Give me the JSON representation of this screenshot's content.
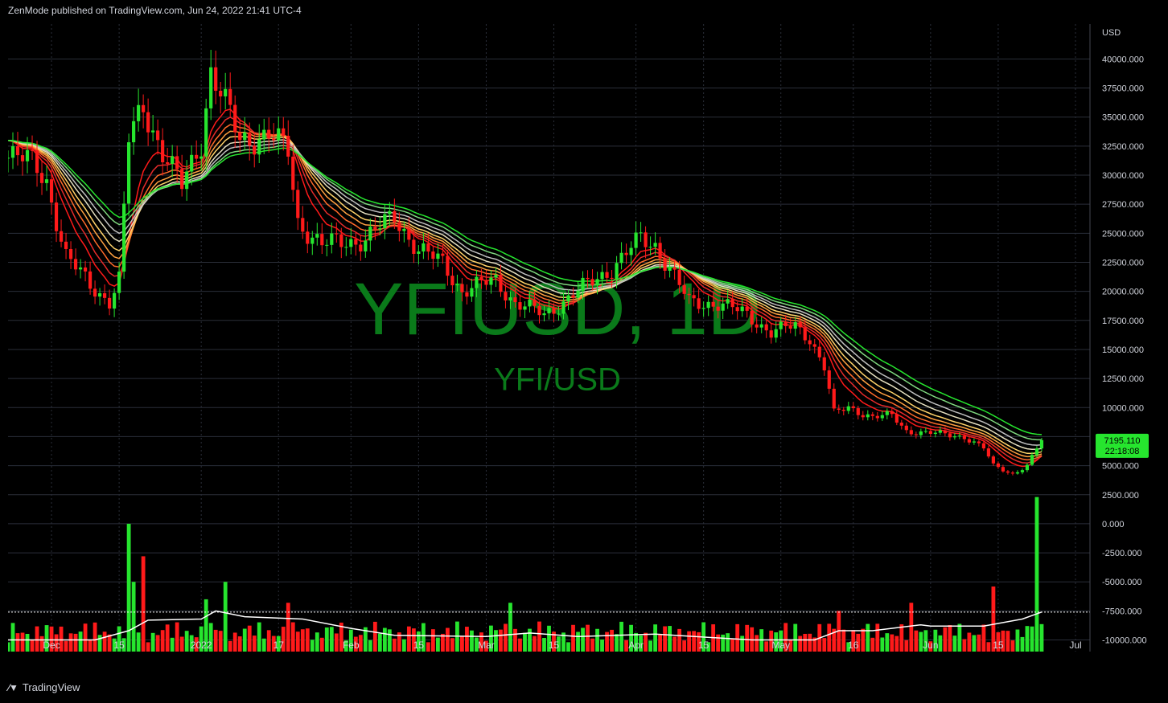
{
  "header": {
    "published_text": "ZenMode published on TradingView.com, Jun 24, 2022 21:41 UTC-4"
  },
  "footer": {
    "brand_label": "TradingView",
    "logo_icon": "tradingview-logo-icon"
  },
  "watermark": {
    "symbol_timeframe": "YFIUSD, 1D",
    "pair": "YFI/USD"
  },
  "colors": {
    "background": "#000000",
    "grid": "#2a2e39",
    "up": "#26e52e",
    "down": "#ff1a1a",
    "axis_text": "#d1d4dc",
    "watermark": "#0a7a1a",
    "volume_ma": "#ffffff",
    "price_tag_bg": "#26e52e"
  },
  "price_tag": {
    "price": "7195.110",
    "countdown": "22:18:08"
  },
  "chart_data": {
    "type": "candlestick",
    "symbol": "YFIUSD",
    "timeframe": "1D",
    "y_axis_label": "USD",
    "ylim": [
      -11000,
      43000
    ],
    "y_ticks": [
      40000,
      37500,
      35000,
      32500,
      30000,
      27500,
      25000,
      22500,
      20000,
      17500,
      15000,
      12500,
      10000,
      7500,
      5000,
      2500,
      0,
      -2500,
      -5000,
      -7500,
      -10000
    ],
    "y_tick_labels": [
      "40000.000",
      "37500.000",
      "35000.000",
      "32500.000",
      "30000.000",
      "27500.000",
      "25000.000",
      "22500.000",
      "20000.000",
      "17500.000",
      "15000.000",
      "12500.000",
      "10000.000",
      "7500.000",
      "5000.000",
      "2500.000",
      "0.000",
      "-2500.000",
      "-5000.000",
      "-7500.000",
      "-10000.000"
    ],
    "x_range": [
      "2021-11-22",
      "2022-07-04"
    ],
    "x_ticks": [
      {
        "date": "2021-12-01",
        "label": "Dec"
      },
      {
        "date": "2021-12-15",
        "label": "15"
      },
      {
        "date": "2022-01-01",
        "label": "2022"
      },
      {
        "date": "2022-01-17",
        "label": "17"
      },
      {
        "date": "2022-02-01",
        "label": "Feb"
      },
      {
        "date": "2022-02-15",
        "label": "15"
      },
      {
        "date": "2022-03-01",
        "label": "Mar"
      },
      {
        "date": "2022-03-15",
        "label": "15"
      },
      {
        "date": "2022-04-01",
        "label": "Apr"
      },
      {
        "date": "2022-04-15",
        "label": "15"
      },
      {
        "date": "2022-05-01",
        "label": "May"
      },
      {
        "date": "2022-05-16",
        "label": "16"
      },
      {
        "date": "2022-06-01",
        "label": "Jun"
      },
      {
        "date": "2022-06-15",
        "label": "15"
      },
      {
        "date": "2022-07-01",
        "label": "Jul"
      }
    ],
    "last_price": 7195.11,
    "price_path": [
      {
        "date": "2021-11-22",
        "close": 32000
      },
      {
        "date": "2021-11-27",
        "close": 31000
      },
      {
        "date": "2021-11-30",
        "close": 29500
      },
      {
        "date": "2021-12-04",
        "close": 23000
      },
      {
        "date": "2021-12-09",
        "close": 20500
      },
      {
        "date": "2021-12-13",
        "close": 19200
      },
      {
        "date": "2021-12-15",
        "close": 21000
      },
      {
        "date": "2021-12-17",
        "close": 33000
      },
      {
        "date": "2021-12-20",
        "close": 36000
      },
      {
        "date": "2021-12-24",
        "close": 32000
      },
      {
        "date": "2021-12-28",
        "close": 29000
      },
      {
        "date": "2022-01-01",
        "close": 33000
      },
      {
        "date": "2022-01-03",
        "close": 39000
      },
      {
        "date": "2022-01-06",
        "close": 36000
      },
      {
        "date": "2022-01-09",
        "close": 33000
      },
      {
        "date": "2022-01-15",
        "close": 33500
      },
      {
        "date": "2022-01-19",
        "close": 32000
      },
      {
        "date": "2022-01-21",
        "close": 26000
      },
      {
        "date": "2022-01-26",
        "close": 24000
      },
      {
        "date": "2022-02-04",
        "close": 24500
      },
      {
        "date": "2022-02-10",
        "close": 26500
      },
      {
        "date": "2022-02-15",
        "close": 23500
      },
      {
        "date": "2022-02-20",
        "close": 22500
      },
      {
        "date": "2022-02-24",
        "close": 20000
      },
      {
        "date": "2022-03-03",
        "close": 21000
      },
      {
        "date": "2022-03-07",
        "close": 19000
      },
      {
        "date": "2022-03-13",
        "close": 18000
      },
      {
        "date": "2022-03-20",
        "close": 20000
      },
      {
        "date": "2022-03-27",
        "close": 22000
      },
      {
        "date": "2022-04-02",
        "close": 24500
      },
      {
        "date": "2022-04-05",
        "close": 24000
      },
      {
        "date": "2022-04-08",
        "close": 22000
      },
      {
        "date": "2022-04-12",
        "close": 19000
      },
      {
        "date": "2022-04-18",
        "close": 19000
      },
      {
        "date": "2022-04-24",
        "close": 18000
      },
      {
        "date": "2022-04-29",
        "close": 16500
      },
      {
        "date": "2022-05-04",
        "close": 17000
      },
      {
        "date": "2022-05-07",
        "close": 16000
      },
      {
        "date": "2022-05-10",
        "close": 13500
      },
      {
        "date": "2022-05-12",
        "close": 9500
      },
      {
        "date": "2022-05-15",
        "close": 10000
      },
      {
        "date": "2022-05-20",
        "close": 9200
      },
      {
        "date": "2022-05-24",
        "close": 9300
      },
      {
        "date": "2022-05-27",
        "close": 8000
      },
      {
        "date": "2022-06-01",
        "close": 7800
      },
      {
        "date": "2022-06-08",
        "close": 7500
      },
      {
        "date": "2022-06-12",
        "close": 6500
      },
      {
        "date": "2022-06-14",
        "close": 5000
      },
      {
        "date": "2022-06-18",
        "close": 4300
      },
      {
        "date": "2022-06-21",
        "close": 5000
      },
      {
        "date": "2022-06-24",
        "close": 7195
      }
    ],
    "ema_ribbon": [
      {
        "name": "ema-1",
        "color": "#ff1a1a"
      },
      {
        "name": "ema-2",
        "color": "#e52b2b"
      },
      {
        "name": "ema-3",
        "color": "#ff6a2a"
      },
      {
        "name": "ema-4",
        "color": "#ffa040"
      },
      {
        "name": "ema-5",
        "color": "#ffd36a"
      },
      {
        "name": "ema-6",
        "color": "#e6e0c0"
      },
      {
        "name": "ema-7",
        "color": "#bfbfbf"
      },
      {
        "name": "ema-8",
        "color": "#7fd87f"
      },
      {
        "name": "ema-9",
        "color": "#26e52e"
      }
    ],
    "volume_panel": {
      "baseline": -11000,
      "spikes": [
        {
          "date": "2021-12-17",
          "top": 0
        },
        {
          "date": "2021-12-18",
          "top": -5000
        },
        {
          "date": "2021-12-20",
          "top": -2800
        },
        {
          "date": "2022-01-02",
          "top": -6500
        },
        {
          "date": "2022-01-06",
          "top": -5000
        },
        {
          "date": "2022-01-19",
          "top": -6800
        },
        {
          "date": "2022-03-06",
          "top": -6800
        },
        {
          "date": "2022-05-13",
          "top": -7500
        },
        {
          "date": "2022-05-28",
          "top": -6800
        },
        {
          "date": "2022-06-14",
          "top": -5400
        },
        {
          "date": "2022-06-23",
          "top": 2300
        }
      ],
      "reference_line": -7600,
      "ma_path": [
        {
          "date": "2021-11-22",
          "v": -10000
        },
        {
          "date": "2021-12-10",
          "v": -10000
        },
        {
          "date": "2021-12-17",
          "v": -9200
        },
        {
          "date": "2021-12-21",
          "v": -8300
        },
        {
          "date": "2022-01-01",
          "v": -8200
        },
        {
          "date": "2022-01-04",
          "v": -7500
        },
        {
          "date": "2022-01-10",
          "v": -8000
        },
        {
          "date": "2022-01-22",
          "v": -8200
        },
        {
          "date": "2022-02-01",
          "v": -9000
        },
        {
          "date": "2022-02-10",
          "v": -9600
        },
        {
          "date": "2022-03-01",
          "v": -9700
        },
        {
          "date": "2022-03-10",
          "v": -9400
        },
        {
          "date": "2022-03-20",
          "v": -9700
        },
        {
          "date": "2022-04-05",
          "v": -9500
        },
        {
          "date": "2022-04-25",
          "v": -10000
        },
        {
          "date": "2022-05-08",
          "v": -10000
        },
        {
          "date": "2022-05-13",
          "v": -9200
        },
        {
          "date": "2022-05-20",
          "v": -9200
        },
        {
          "date": "2022-05-30",
          "v": -8700
        },
        {
          "date": "2022-06-01",
          "v": -8800
        },
        {
          "date": "2022-06-12",
          "v": -8800
        },
        {
          "date": "2022-06-20",
          "v": -8200
        },
        {
          "date": "2022-06-24",
          "v": -7600
        }
      ]
    }
  }
}
